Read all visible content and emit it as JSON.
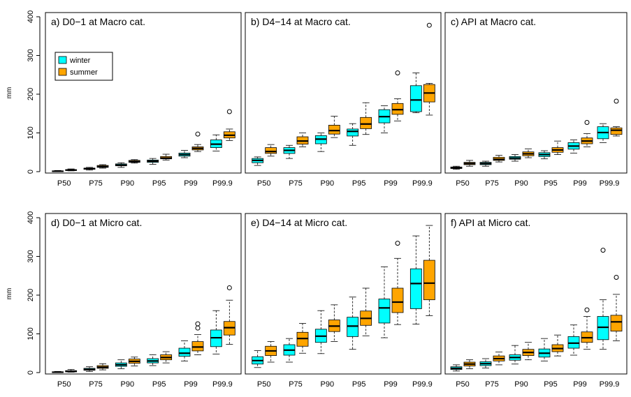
{
  "colors": {
    "winter": "#00FFFF",
    "summer": "#FFA500",
    "frame": "#000000",
    "background": "#FFFFFF"
  },
  "legend": {
    "winter_label": "winter",
    "summer_label": "summer",
    "placement": "top-left of panel a"
  },
  "chart_data": [
    {
      "type": "boxplot",
      "title": "a) D0−1 at Macro cat.",
      "ylabel": "mm",
      "ylim": [
        0,
        400
      ],
      "yticks": [
        0,
        100,
        200,
        300,
        400
      ],
      "categories": [
        "P50",
        "P75",
        "P90",
        "P95",
        "P99",
        "P99.9"
      ],
      "series": [
        {
          "name": "winter",
          "boxes": [
            {
              "min": 0,
              "q1": 1,
              "median": 1,
              "q3": 2,
              "max": 3,
              "outliers": []
            },
            {
              "min": 4,
              "q1": 6,
              "median": 8,
              "q3": 9,
              "max": 11,
              "outliers": []
            },
            {
              "min": 11,
              "q1": 15,
              "median": 17,
              "q3": 20,
              "max": 23,
              "outliers": []
            },
            {
              "min": 19,
              "q1": 24,
              "median": 27,
              "q3": 30,
              "max": 34,
              "outliers": []
            },
            {
              "min": 36,
              "q1": 40,
              "median": 44,
              "q3": 48,
              "max": 55,
              "outliers": []
            },
            {
              "min": 53,
              "q1": 62,
              "median": 71,
              "q3": 82,
              "max": 95,
              "outliers": []
            }
          ]
        },
        {
          "name": "summer",
          "boxes": [
            {
              "min": 2,
              "q1": 3,
              "median": 4,
              "q3": 5,
              "max": 7,
              "outliers": []
            },
            {
              "min": 9,
              "q1": 11,
              "median": 13,
              "q3": 16,
              "max": 18,
              "outliers": []
            },
            {
              "min": 22,
              "q1": 24,
              "median": 26,
              "q3": 29,
              "max": 31,
              "outliers": []
            },
            {
              "min": 30,
              "q1": 33,
              "median": 35,
              "q3": 39,
              "max": 45,
              "outliers": []
            },
            {
              "min": 52,
              "q1": 56,
              "median": 60,
              "q3": 64,
              "max": 70,
              "outliers": [
                97
              ]
            },
            {
              "min": 80,
              "q1": 87,
              "median": 94,
              "q3": 103,
              "max": 110,
              "outliers": [
                155
              ]
            }
          ]
        }
      ]
    },
    {
      "type": "boxplot",
      "title": "b) D4−14 at Macro cat.",
      "ylabel": "",
      "ylim": [
        0,
        400
      ],
      "yticks": [],
      "categories": [
        "P50",
        "P75",
        "P90",
        "P95",
        "P99",
        "P99.9"
      ],
      "series": [
        {
          "name": "winter",
          "boxes": [
            {
              "min": 16,
              "q1": 23,
              "median": 29,
              "q3": 34,
              "max": 38,
              "outliers": []
            },
            {
              "min": 34,
              "q1": 47,
              "median": 55,
              "q3": 62,
              "max": 68,
              "outliers": []
            },
            {
              "min": 52,
              "q1": 72,
              "median": 84,
              "q3": 93,
              "max": 100,
              "outliers": []
            },
            {
              "min": 68,
              "q1": 92,
              "median": 104,
              "q3": 110,
              "max": 124,
              "outliers": []
            },
            {
              "min": 100,
              "q1": 126,
              "median": 142,
              "q3": 160,
              "max": 170,
              "outliers": []
            },
            {
              "min": 152,
              "q1": 155,
              "median": 185,
              "q3": 222,
              "max": 255,
              "outliers": []
            }
          ]
        },
        {
          "name": "summer",
          "boxes": [
            {
              "min": 40,
              "q1": 47,
              "median": 52,
              "q3": 62,
              "max": 70,
              "outliers": []
            },
            {
              "min": 64,
              "q1": 71,
              "median": 79,
              "q3": 90,
              "max": 100,
              "outliers": []
            },
            {
              "min": 88,
              "q1": 97,
              "median": 106,
              "q3": 120,
              "max": 143,
              "outliers": []
            },
            {
              "min": 96,
              "q1": 111,
              "median": 123,
              "q3": 140,
              "max": 178,
              "outliers": []
            },
            {
              "min": 131,
              "q1": 148,
              "median": 160,
              "q3": 176,
              "max": 188,
              "outliers": [
                255
              ]
            },
            {
              "min": 146,
              "q1": 180,
              "median": 203,
              "q3": 225,
              "max": 228,
              "outliers": [
                378
              ]
            }
          ]
        }
      ]
    },
    {
      "type": "boxplot",
      "title": "c) API at Macro cat.",
      "ylabel": "",
      "ylim": [
        0,
        400
      ],
      "yticks": [],
      "categories": [
        "P50",
        "P75",
        "P90",
        "P95",
        "P99",
        "P99.9"
      ],
      "series": [
        {
          "name": "winter",
          "boxes": [
            {
              "min": 6,
              "q1": 8,
              "median": 10,
              "q3": 12,
              "max": 14,
              "outliers": []
            },
            {
              "min": 14,
              "q1": 18,
              "median": 21,
              "q3": 24,
              "max": 27,
              "outliers": []
            },
            {
              "min": 27,
              "q1": 32,
              "median": 35,
              "q3": 39,
              "max": 44,
              "outliers": []
            },
            {
              "min": 33,
              "q1": 39,
              "median": 44,
              "q3": 49,
              "max": 54,
              "outliers": []
            },
            {
              "min": 48,
              "q1": 58,
              "median": 66,
              "q3": 75,
              "max": 82,
              "outliers": []
            },
            {
              "min": 75,
              "q1": 85,
              "median": 101,
              "q3": 116,
              "max": 124,
              "outliers": []
            }
          ]
        },
        {
          "name": "summer",
          "boxes": [
            {
              "min": 14,
              "q1": 18,
              "median": 21,
              "q3": 24,
              "max": 29,
              "outliers": []
            },
            {
              "min": 25,
              "q1": 29,
              "median": 32,
              "q3": 37,
              "max": 42,
              "outliers": []
            },
            {
              "min": 36,
              "q1": 41,
              "median": 46,
              "q3": 51,
              "max": 59,
              "outliers": []
            },
            {
              "min": 44,
              "q1": 50,
              "median": 56,
              "q3": 62,
              "max": 79,
              "outliers": []
            },
            {
              "min": 64,
              "q1": 72,
              "median": 79,
              "q3": 87,
              "max": 98,
              "outliers": [
                127
              ]
            },
            {
              "min": 92,
              "q1": 96,
              "median": 107,
              "q3": 113,
              "max": 116,
              "outliers": [
                182
              ]
            }
          ]
        }
      ]
    },
    {
      "type": "boxplot",
      "title": "d) D0−1 at Micro cat.",
      "ylabel": "mm",
      "ylim": [
        0,
        400
      ],
      "yticks": [
        0,
        100,
        200,
        300,
        400
      ],
      "categories": [
        "P50",
        "P75",
        "P90",
        "P95",
        "P99",
        "P99.9"
      ],
      "series": [
        {
          "name": "winter",
          "boxes": [
            {
              "min": 0,
              "q1": 1,
              "median": 1,
              "q3": 2,
              "max": 3,
              "outliers": []
            },
            {
              "min": 3,
              "q1": 6,
              "median": 8,
              "q3": 11,
              "max": 15,
              "outliers": []
            },
            {
              "min": 10,
              "q1": 16,
              "median": 20,
              "q3": 25,
              "max": 33,
              "outliers": []
            },
            {
              "min": 18,
              "q1": 25,
              "median": 30,
              "q3": 36,
              "max": 46,
              "outliers": []
            },
            {
              "min": 30,
              "q1": 42,
              "median": 50,
              "q3": 63,
              "max": 82,
              "outliers": []
            },
            {
              "min": 48,
              "q1": 67,
              "median": 90,
              "q3": 110,
              "max": 160,
              "outliers": []
            }
          ]
        },
        {
          "name": "summer",
          "boxes": [
            {
              "min": 1,
              "q1": 2,
              "median": 3,
              "q3": 5,
              "max": 8,
              "outliers": []
            },
            {
              "min": 7,
              "q1": 11,
              "median": 14,
              "q3": 18,
              "max": 23,
              "outliers": []
            },
            {
              "min": 17,
              "q1": 24,
              "median": 29,
              "q3": 35,
              "max": 40,
              "outliers": []
            },
            {
              "min": 25,
              "q1": 33,
              "median": 39,
              "q3": 46,
              "max": 54,
              "outliers": []
            },
            {
              "min": 46,
              "q1": 56,
              "median": 66,
              "q3": 80,
              "max": 98,
              "outliers": [
                126,
                115
              ]
            },
            {
              "min": 73,
              "q1": 97,
              "median": 116,
              "q3": 132,
              "max": 187,
              "outliers": [
                219
              ]
            }
          ]
        }
      ]
    },
    {
      "type": "boxplot",
      "title": "e) D4−14 at Micro cat.",
      "ylabel": "",
      "ylim": [
        0,
        400
      ],
      "yticks": [],
      "categories": [
        "P50",
        "P75",
        "P90",
        "P95",
        "P99",
        "P99.9"
      ],
      "series": [
        {
          "name": "winter",
          "boxes": [
            {
              "min": 13,
              "q1": 22,
              "median": 31,
              "q3": 41,
              "max": 57,
              "outliers": []
            },
            {
              "min": 27,
              "q1": 45,
              "median": 58,
              "q3": 72,
              "max": 88,
              "outliers": []
            },
            {
              "min": 49,
              "q1": 78,
              "median": 94,
              "q3": 112,
              "max": 160,
              "outliers": []
            },
            {
              "min": 60,
              "q1": 93,
              "median": 120,
              "q3": 143,
              "max": 195,
              "outliers": []
            },
            {
              "min": 90,
              "q1": 128,
              "median": 167,
              "q3": 190,
              "max": 273,
              "outliers": []
            },
            {
              "min": 125,
              "q1": 165,
              "median": 230,
              "q3": 268,
              "max": 353,
              "outliers": []
            }
          ]
        },
        {
          "name": "summer",
          "boxes": [
            {
              "min": 27,
              "q1": 44,
              "median": 56,
              "q3": 68,
              "max": 80,
              "outliers": []
            },
            {
              "min": 50,
              "q1": 68,
              "median": 88,
              "q3": 104,
              "max": 127,
              "outliers": []
            },
            {
              "min": 80,
              "q1": 106,
              "median": 120,
              "q3": 136,
              "max": 175,
              "outliers": []
            },
            {
              "min": 95,
              "q1": 122,
              "median": 140,
              "q3": 159,
              "max": 218,
              "outliers": []
            },
            {
              "min": 124,
              "q1": 155,
              "median": 182,
              "q3": 218,
              "max": 295,
              "outliers": [
                334
              ]
            },
            {
              "min": 147,
              "q1": 188,
              "median": 231,
              "q3": 290,
              "max": 380,
              "outliers": []
            }
          ]
        }
      ]
    },
    {
      "type": "boxplot",
      "title": "f) API at Micro cat.",
      "ylabel": "",
      "ylim": [
        0,
        400
      ],
      "yticks": [],
      "categories": [
        "P50",
        "P75",
        "P90",
        "P95",
        "P99",
        "P99.9"
      ],
      "series": [
        {
          "name": "winter",
          "boxes": [
            {
              "min": 4,
              "q1": 8,
              "median": 11,
              "q3": 15,
              "max": 20,
              "outliers": []
            },
            {
              "min": 12,
              "q1": 18,
              "median": 23,
              "q3": 28,
              "max": 36,
              "outliers": []
            },
            {
              "min": 22,
              "q1": 32,
              "median": 39,
              "q3": 46,
              "max": 70,
              "outliers": []
            },
            {
              "min": 30,
              "q1": 40,
              "median": 50,
              "q3": 61,
              "max": 88,
              "outliers": []
            },
            {
              "min": 45,
              "q1": 63,
              "median": 76,
              "q3": 93,
              "max": 123,
              "outliers": []
            },
            {
              "min": 60,
              "q1": 85,
              "median": 117,
              "q3": 145,
              "max": 188,
              "outliers": [
                316
              ]
            }
          ]
        },
        {
          "name": "summer",
          "boxes": [
            {
              "min": 10,
              "q1": 17,
              "median": 22,
              "q3": 27,
              "max": 33,
              "outliers": []
            },
            {
              "min": 20,
              "q1": 30,
              "median": 36,
              "q3": 43,
              "max": 53,
              "outliers": []
            },
            {
              "min": 33,
              "q1": 44,
              "median": 52,
              "q3": 60,
              "max": 78,
              "outliers": []
            },
            {
              "min": 43,
              "q1": 54,
              "median": 62,
              "q3": 72,
              "max": 97,
              "outliers": []
            },
            {
              "min": 60,
              "q1": 78,
              "median": 90,
              "q3": 105,
              "max": 145,
              "outliers": [
                162
              ]
            },
            {
              "min": 82,
              "q1": 107,
              "median": 131,
              "q3": 148,
              "max": 202,
              "outliers": [
                246
              ]
            }
          ]
        }
      ]
    }
  ]
}
